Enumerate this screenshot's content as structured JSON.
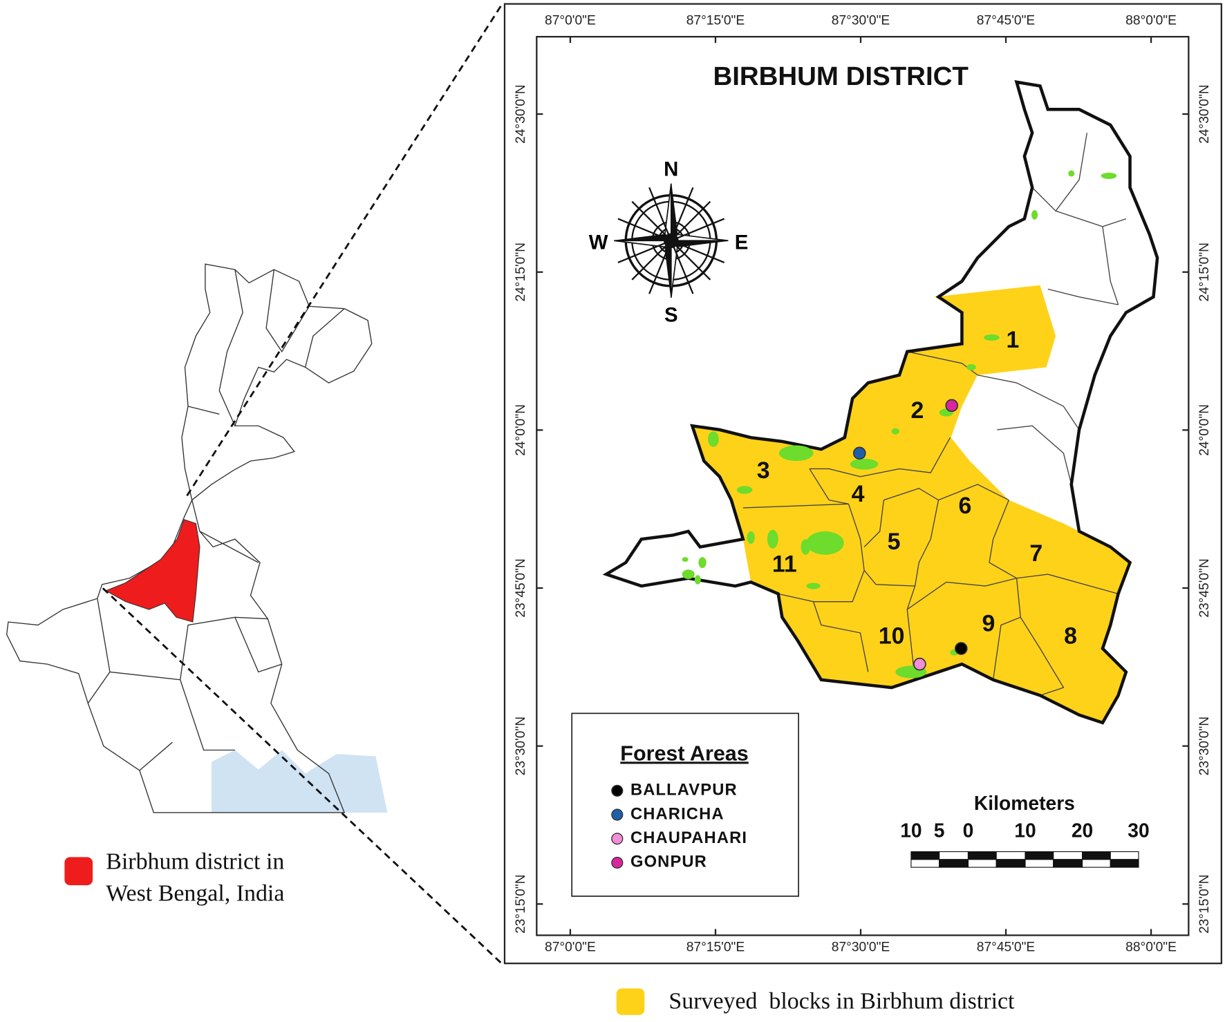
{
  "map": {
    "title": "BIRBHUM DISTRICT",
    "longitude_ticks": [
      "87°0'0\"E",
      "87°15'0\"E",
      "87°30'0\"E",
      "87°45'0\"E",
      "88°0'0\"E"
    ],
    "latitude_ticks": [
      "24°30'0\"N",
      "24°15'0\"N",
      "24°0'0\"N",
      "23°45'0\"N",
      "23°30'0\"N",
      "23°15'0\"N"
    ],
    "compass": {
      "north": "N",
      "south": "S",
      "west": "W",
      "east": "E"
    },
    "blocks": [
      "1",
      "2",
      "3",
      "4",
      "5",
      "6",
      "7",
      "8",
      "9",
      "10",
      "11"
    ],
    "legend": {
      "title": "Forest Areas",
      "items": [
        {
          "label": "BALLAVPUR",
          "color": "#000000"
        },
        {
          "label": "CHARICHA",
          "color": "#1f5fa8"
        },
        {
          "label": "CHAUPAHARI",
          "color": "#f28fd8"
        },
        {
          "label": "GONPUR",
          "color": "#d9269e"
        }
      ]
    },
    "scale": {
      "title": "Kilometers",
      "labels": [
        10,
        5,
        0,
        10,
        20,
        30
      ]
    }
  },
  "inset": {
    "legend_lines": [
      "Birbhum district in",
      "West Bengal, India"
    ],
    "highlight_color": "#ee1c1c"
  },
  "footer": {
    "legend": "Surveyed  blocks in Birbhum district",
    "color": "#ffd21a"
  }
}
